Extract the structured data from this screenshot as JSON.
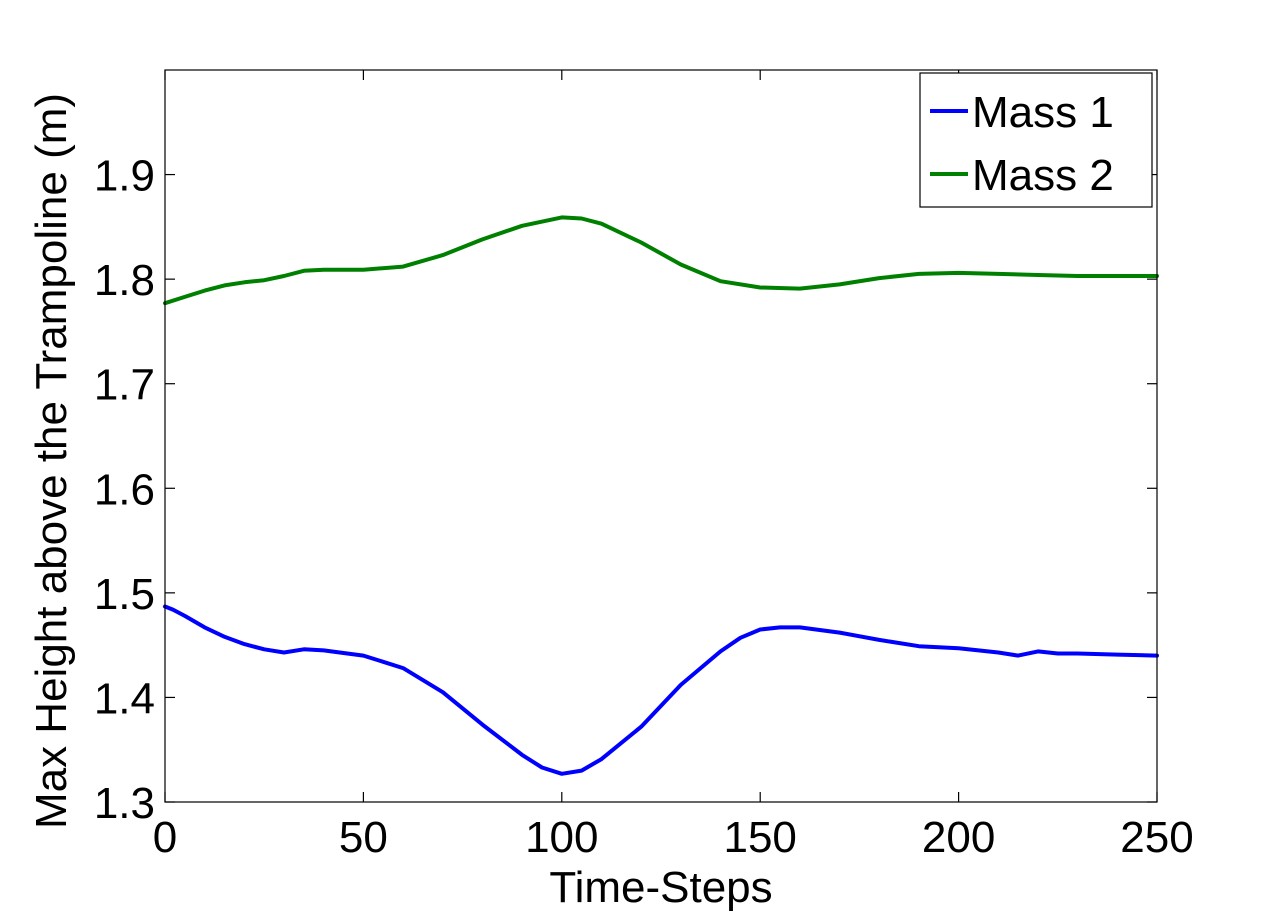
{
  "chart_data": {
    "type": "line",
    "xlabel": "Time-Steps",
    "ylabel": "Max Height above the Trampoline (m)",
    "xlim": [
      0,
      250
    ],
    "ylim": [
      1.3,
      2.0
    ],
    "xticks": [
      0,
      50,
      100,
      150,
      200,
      250
    ],
    "xtick_labels": [
      "0",
      "50",
      "100",
      "150",
      "200",
      "250"
    ],
    "yticks": [
      1.3,
      1.4,
      1.5,
      1.6,
      1.7,
      1.8,
      1.9
    ],
    "ytick_labels": [
      "1.3",
      "1.4",
      "1.5",
      "1.6",
      "1.7",
      "1.8",
      "1.9"
    ],
    "grid": false,
    "legend_position": "top-right",
    "series": [
      {
        "name": "Mass 1",
        "color": "#0000ff",
        "x": [
          0,
          2,
          5,
          10,
          15,
          20,
          25,
          30,
          35,
          40,
          50,
          60,
          70,
          80,
          90,
          95,
          100,
          105,
          110,
          120,
          130,
          140,
          145,
          150,
          155,
          160,
          170,
          180,
          190,
          200,
          210,
          215,
          220,
          225,
          230,
          240,
          250
        ],
        "y": [
          1.487,
          1.484,
          1.478,
          1.467,
          1.458,
          1.451,
          1.446,
          1.443,
          1.446,
          1.445,
          1.44,
          1.428,
          1.405,
          1.374,
          1.345,
          1.333,
          1.327,
          1.33,
          1.341,
          1.372,
          1.412,
          1.444,
          1.457,
          1.465,
          1.467,
          1.467,
          1.462,
          1.455,
          1.449,
          1.447,
          1.443,
          1.44,
          1.444,
          1.442,
          1.442,
          1.441,
          1.44
        ]
      },
      {
        "name": "Mass 2",
        "color": "#008000",
        "x": [
          0,
          5,
          10,
          15,
          20,
          25,
          30,
          35,
          40,
          50,
          60,
          70,
          80,
          90,
          100,
          105,
          110,
          120,
          130,
          140,
          150,
          160,
          170,
          180,
          190,
          200,
          210,
          220,
          230,
          240,
          250
        ],
        "y": [
          1.777,
          1.783,
          1.789,
          1.794,
          1.797,
          1.799,
          1.803,
          1.808,
          1.809,
          1.809,
          1.812,
          1.823,
          1.838,
          1.851,
          1.859,
          1.858,
          1.853,
          1.835,
          1.814,
          1.798,
          1.792,
          1.791,
          1.795,
          1.801,
          1.805,
          1.806,
          1.805,
          1.804,
          1.803,
          1.803,
          1.803
        ]
      }
    ]
  }
}
